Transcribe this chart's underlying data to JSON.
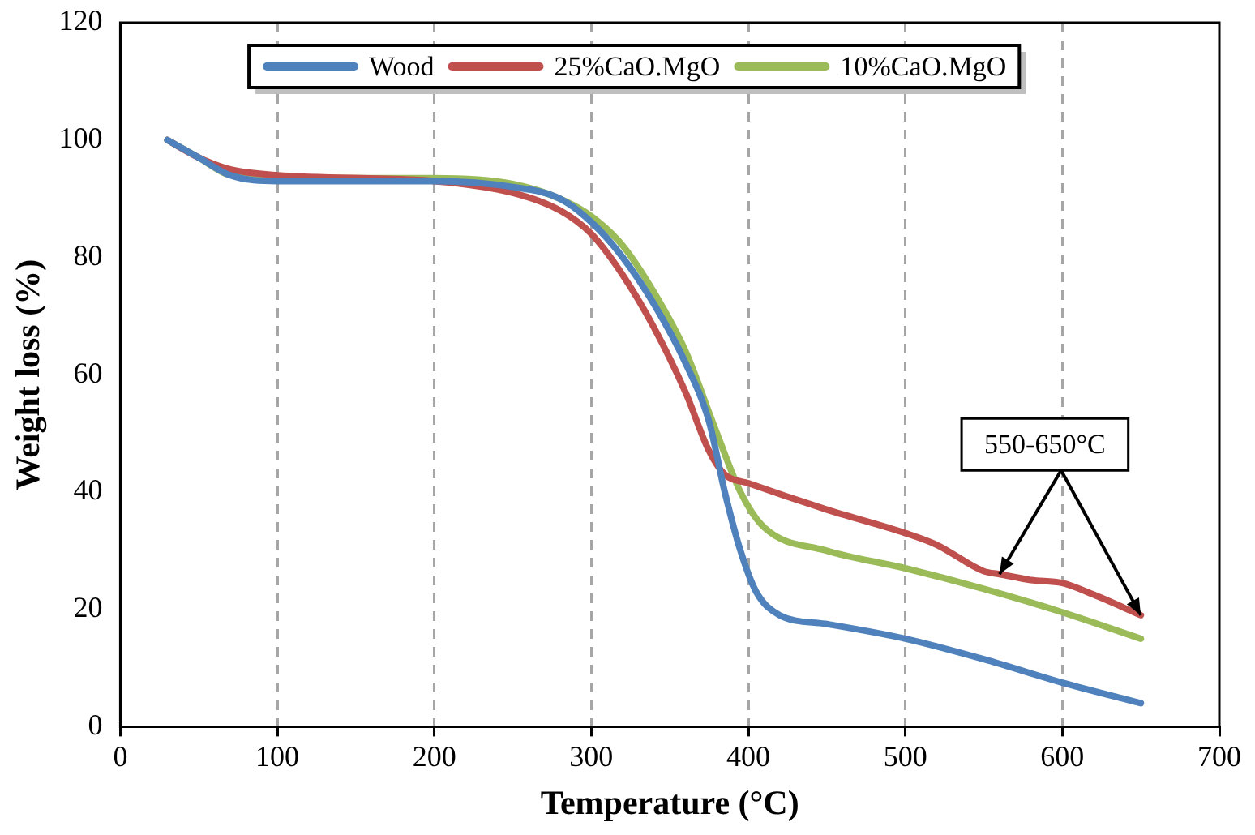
{
  "chart_data": {
    "type": "line",
    "xlabel": "Temperature (°C)",
    "ylabel": "Weight loss (%)",
    "xlim": [
      0,
      700
    ],
    "xticks": [
      0,
      100,
      200,
      300,
      400,
      500,
      600,
      700
    ],
    "ylim": [
      0,
      120
    ],
    "yticks": [
      0,
      20,
      40,
      60,
      80,
      100,
      120
    ],
    "grid": "x",
    "legend": "top",
    "marker": "none",
    "line_style": "solid",
    "annotations": [
      {
        "text": "550-650°C",
        "x": 560,
        "y": 26
      }
    ],
    "series": [
      {
        "name": "Wood",
        "color": "#4f81bd",
        "x": [
          30,
          50,
          70,
          100,
          200,
          250,
          280,
          300,
          320,
          340,
          360,
          375,
          385,
          395,
          405,
          420,
          450,
          500,
          550,
          600,
          650
        ],
        "values": [
          100,
          97,
          94,
          93,
          93,
          92,
          90,
          86,
          80,
          72,
          62,
          52,
          40,
          30,
          23,
          19,
          17.5,
          15,
          11.5,
          7.5,
          4
        ]
      },
      {
        "name": "25%CaO.MgO",
        "color": "#c0504d",
        "x": [
          30,
          50,
          70,
          100,
          200,
          250,
          280,
          300,
          320,
          340,
          360,
          375,
          385,
          400,
          450,
          500,
          520,
          550,
          560,
          580,
          600,
          620,
          650
        ],
        "values": [
          100,
          97,
          95,
          94,
          93,
          91,
          88,
          84,
          77,
          68,
          57,
          47,
          43,
          41.5,
          37,
          33,
          31,
          26.5,
          26,
          25,
          24.5,
          22.5,
          19
        ]
      },
      {
        "name": "10%CaO.MgO",
        "color": "#9bbb59",
        "x": [
          30,
          50,
          70,
          100,
          200,
          250,
          280,
          300,
          320,
          340,
          360,
          380,
          395,
          410,
          450,
          500,
          550,
          600,
          650
        ],
        "values": [
          100,
          97,
          94,
          93.5,
          93.5,
          92.5,
          90,
          87,
          82,
          74,
          64,
          50,
          40,
          34,
          30,
          27,
          23.5,
          19.5,
          15
        ]
      }
    ]
  }
}
